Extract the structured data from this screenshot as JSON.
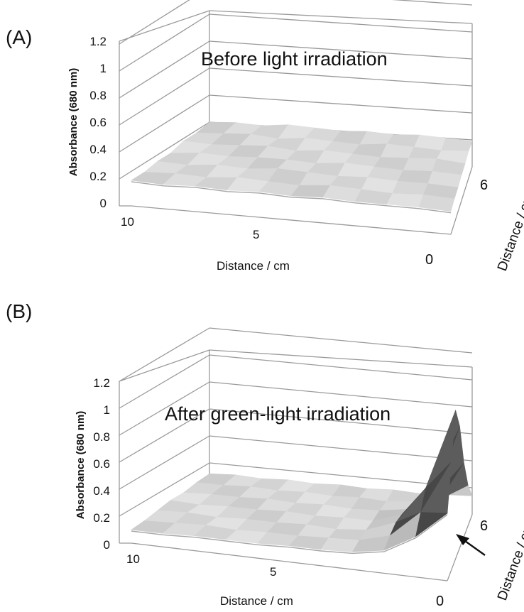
{
  "chart_data": [
    {
      "panel_label": "(A)",
      "title": "Before light irradiation",
      "type": "surface",
      "ylabel": "Absorbance (680 nm)",
      "xlabel": "Distance / cm",
      "zlabel": "Distance / cm",
      "yticks": [
        "0",
        "0.2",
        "0.4",
        "0.6",
        "0.8",
        "1",
        "1.2"
      ],
      "xticks": [
        "10",
        "5",
        "0"
      ],
      "zticks": [
        "0",
        "6"
      ],
      "ylim": [
        0,
        1.2
      ],
      "x": [
        10,
        9,
        8,
        7,
        6,
        5,
        4,
        3,
        2,
        1,
        0
      ],
      "z": [
        6,
        5,
        4,
        3,
        2,
        1,
        0
      ],
      "values": [
        [
          0.2,
          0.21,
          0.2,
          0.22,
          0.21,
          0.2,
          0.21,
          0.2,
          0.21,
          0.2,
          0.19
        ],
        [
          0.19,
          0.2,
          0.21,
          0.19,
          0.21,
          0.2,
          0.19,
          0.21,
          0.2,
          0.19,
          0.2
        ],
        [
          0.2,
          0.19,
          0.2,
          0.21,
          0.19,
          0.21,
          0.2,
          0.19,
          0.2,
          0.21,
          0.19
        ],
        [
          0.18,
          0.2,
          0.19,
          0.2,
          0.2,
          0.19,
          0.21,
          0.2,
          0.19,
          0.2,
          0.19
        ],
        [
          0.19,
          0.18,
          0.2,
          0.19,
          0.21,
          0.2,
          0.19,
          0.2,
          0.19,
          0.19,
          0.18
        ],
        [
          0.18,
          0.19,
          0.18,
          0.2,
          0.19,
          0.18,
          0.2,
          0.19,
          0.18,
          0.19,
          0.18
        ],
        [
          0.19,
          0.18,
          0.19,
          0.18,
          0.19,
          0.18,
          0.19,
          0.18,
          0.18,
          0.18,
          0.17
        ]
      ]
    },
    {
      "panel_label": "(B)",
      "title": "After green-light irradiation",
      "type": "surface",
      "ylabel": "Absorbance (680 nm)",
      "xlabel": "Distance / cm",
      "zlabel": "Distance / cm",
      "yticks": [
        "0",
        "0.2",
        "0.4",
        "0.6",
        "0.8",
        "1",
        "1.2"
      ],
      "xticks": [
        "10",
        "5",
        "0"
      ],
      "zticks": [
        "0",
        "6"
      ],
      "ylim": [
        0,
        1.2
      ],
      "x": [
        10,
        9,
        8,
        7,
        6,
        5,
        4,
        3,
        2,
        1,
        0
      ],
      "z": [
        6,
        5,
        4,
        3,
        2,
        1,
        0
      ],
      "values": [
        [
          0.12,
          0.13,
          0.12,
          0.13,
          0.12,
          0.13,
          0.12,
          0.13,
          0.12,
          0.13,
          0.14
        ],
        [
          0.12,
          0.12,
          0.13,
          0.12,
          0.13,
          0.12,
          0.13,
          0.12,
          0.14,
          0.18,
          0.3
        ],
        [
          0.11,
          0.12,
          0.12,
          0.13,
          0.12,
          0.13,
          0.12,
          0.13,
          0.16,
          0.3,
          0.55
        ],
        [
          0.12,
          0.11,
          0.12,
          0.12,
          0.13,
          0.12,
          0.13,
          0.13,
          0.2,
          0.45,
          0.9
        ],
        [
          0.11,
          0.12,
          0.11,
          0.12,
          0.12,
          0.13,
          0.12,
          0.14,
          0.22,
          0.5,
          1.1
        ],
        [
          0.1,
          0.11,
          0.12,
          0.11,
          0.12,
          0.12,
          0.13,
          0.14,
          0.2,
          0.4,
          0.8
        ],
        [
          0.1,
          0.1,
          0.11,
          0.11,
          0.11,
          0.12,
          0.12,
          0.13,
          0.17,
          0.3,
          0.5
        ]
      ],
      "annotation": "arrow"
    }
  ]
}
